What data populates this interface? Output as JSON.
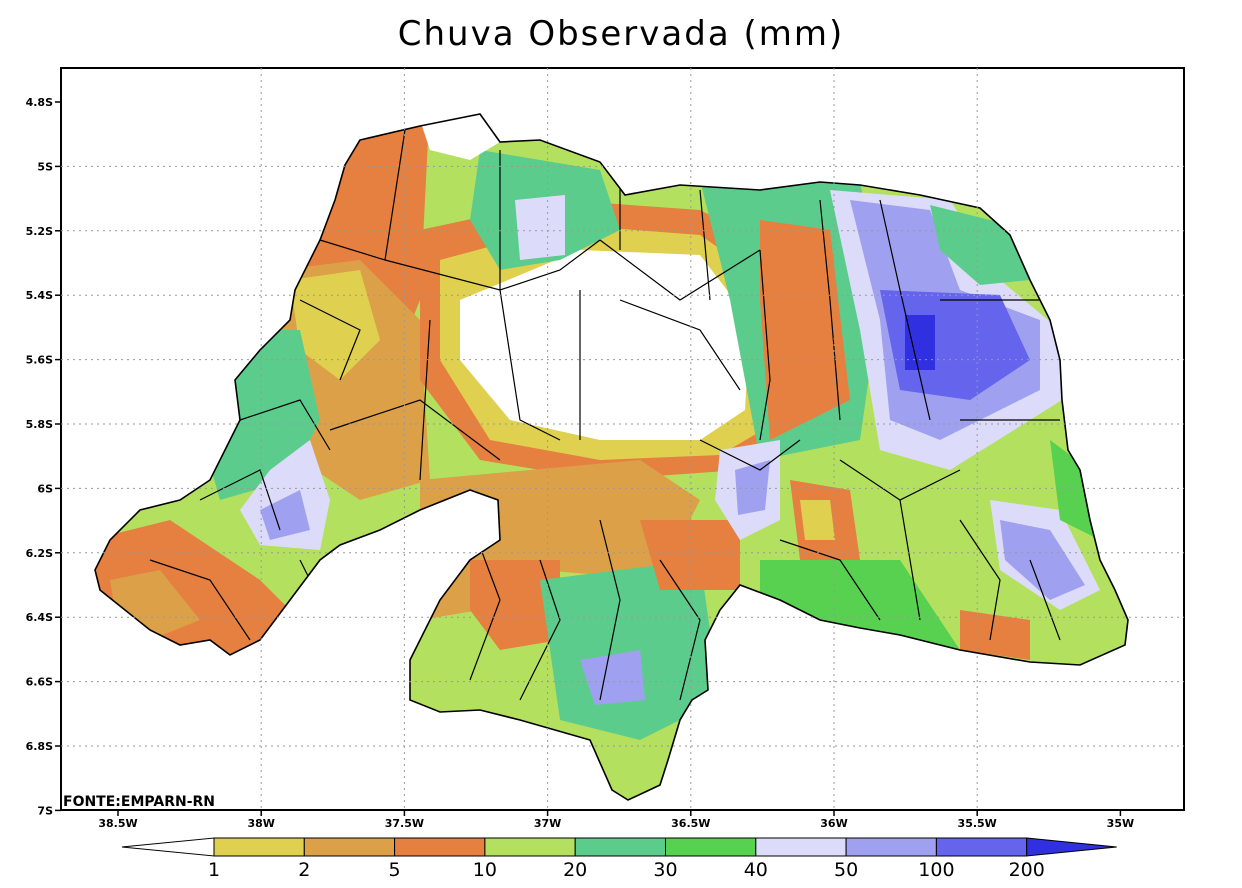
{
  "title": "Chuva Observada (mm)",
  "source_label": "FONTE:EMPARN-RN",
  "lat_ticks": [
    "4.8S",
    "5S",
    "5.2S",
    "5.4S",
    "5.6S",
    "5.8S",
    "6S",
    "6.2S",
    "6.4S",
    "6.6S",
    "6.8S",
    "7S"
  ],
  "lon_ticks": [
    "38.5W",
    "38W",
    "37.5W",
    "37W",
    "36.5W",
    "36W",
    "35.5W",
    "35W"
  ],
  "colorbar": {
    "labels": [
      "1",
      "2",
      "5",
      "10",
      "20",
      "30",
      "40",
      "50",
      "100",
      "200"
    ],
    "colors": [
      "#ffffff",
      "#e0d050",
      "#dca048",
      "#e58040",
      "#b4e060",
      "#5ccc8c",
      "#58d050",
      "#dcdcfa",
      "#a0a0f0",
      "#6464ec",
      "#3030e0"
    ]
  },
  "legend_colors": {
    "white": "#ffffff",
    "c1_2": "#e0d050",
    "c2_5": "#dca048",
    "c5_10": "#e58040",
    "c10_20": "#b4e060",
    "c20_30": "#5ccc8c",
    "c30_40": "#58d050",
    "c40_50": "#dcdcfa",
    "c50_100": "#a0a0f0",
    "c100_200": "#6464ec",
    "c200_plus": "#3030e0"
  }
}
